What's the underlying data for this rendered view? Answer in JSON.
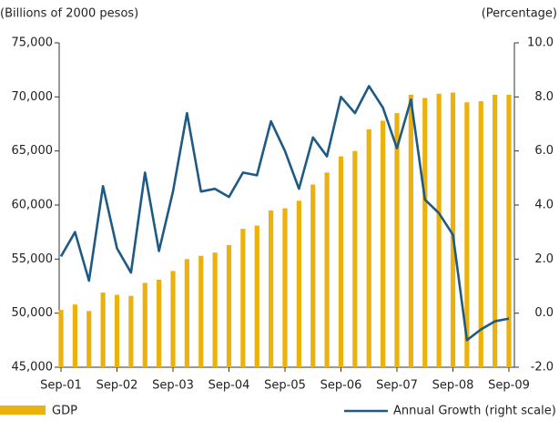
{
  "chart_data": {
    "type": "bar_line",
    "y_axis_label": "(Billions of 2000 pesos)",
    "y2_axis_label": "(Percentage)",
    "categories": [
      "Sep-01",
      null,
      null,
      null,
      "Sep-02",
      null,
      null,
      null,
      "Sep-03",
      null,
      null,
      null,
      "Sep-04",
      null,
      null,
      null,
      "Sep-05",
      null,
      null,
      null,
      "Sep-06",
      null,
      null,
      null,
      "Sep-07",
      null,
      null,
      null,
      "Sep-08",
      null,
      null,
      null,
      "Sep-09"
    ],
    "series": [
      {
        "name": "GDP",
        "type": "bar",
        "color": "#ebb10f",
        "axis": "y",
        "values": [
          50300,
          50800,
          50200,
          51900,
          51700,
          51600,
          52800,
          53100,
          53900,
          55000,
          55300,
          55600,
          56300,
          57800,
          58100,
          59500,
          59700,
          60400,
          61900,
          63000,
          64500,
          65000,
          67000,
          67800,
          68500,
          70200,
          69900,
          70300,
          70400,
          69500,
          69600,
          70200,
          70200
        ]
      },
      {
        "name": "Annual Growth (right scale)",
        "type": "line",
        "color": "#1f5a85",
        "axis": "y2",
        "values": [
          2.1,
          3.0,
          1.2,
          4.7,
          2.4,
          1.5,
          5.2,
          2.3,
          4.5,
          7.4,
          4.5,
          4.6,
          4.3,
          5.2,
          5.1,
          7.1,
          6.0,
          4.6,
          6.5,
          5.8,
          8.0,
          7.4,
          8.4,
          7.6,
          6.1,
          7.9,
          4.2,
          3.7,
          2.9,
          -1.0,
          -0.6,
          -0.3,
          -0.2
        ]
      }
    ],
    "ylim": [
      45000,
      75000
    ],
    "yticks": [
      {
        "value": 45000,
        "label": "45,000"
      },
      {
        "value": 50000,
        "label": "50,000"
      },
      {
        "value": 55000,
        "label": "55,000"
      },
      {
        "value": 60000,
        "label": "60,000"
      },
      {
        "value": 65000,
        "label": "65,000"
      },
      {
        "value": 70000,
        "label": "70,000"
      },
      {
        "value": 75000,
        "label": "75,000"
      }
    ],
    "y2lim": [
      -2,
      10
    ],
    "y2ticks": [
      {
        "value": -2,
        "label": "-2.0"
      },
      {
        "value": 0,
        "label": "0.0"
      },
      {
        "value": 2,
        "label": "2.0"
      },
      {
        "value": 4,
        "label": "4.0"
      },
      {
        "value": 6,
        "label": "6.0"
      },
      {
        "value": 8,
        "label": "8.0"
      },
      {
        "value": 10,
        "label": "10.0"
      }
    ],
    "grid": false,
    "legend": "bottom"
  }
}
